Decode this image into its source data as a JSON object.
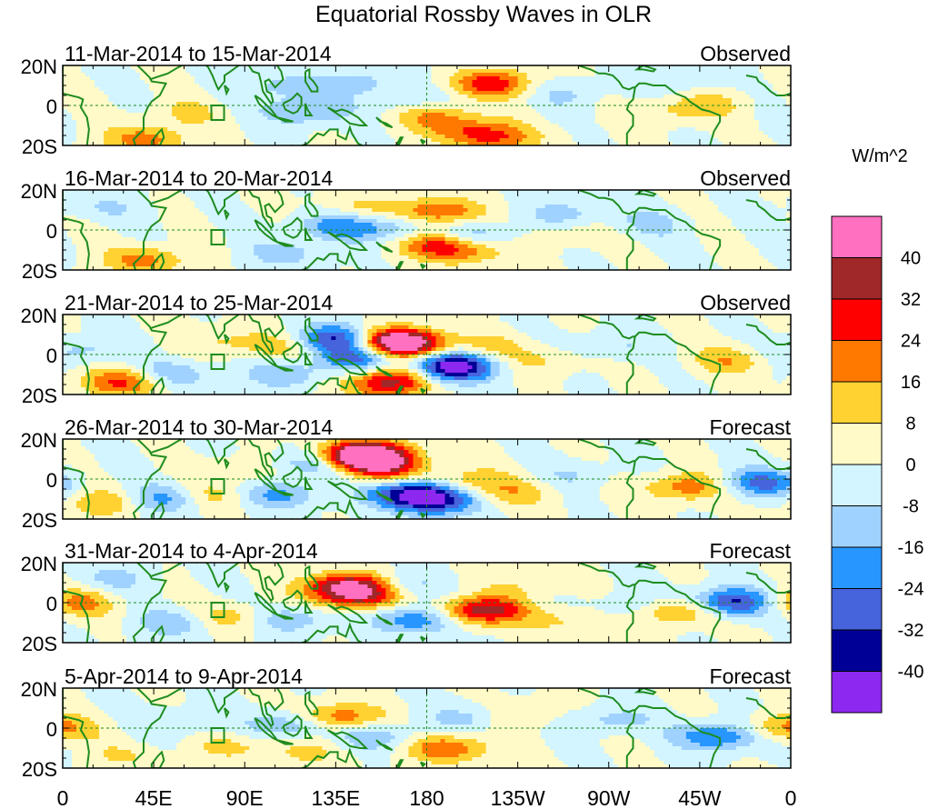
{
  "chart_data": {
    "type": "heatmap",
    "title": "Equatorial Rossby Waves in OLR",
    "colorbar": {
      "units": "W/m^2",
      "tick_labels": [
        "40",
        "32",
        "24",
        "16",
        "8",
        "0",
        "-8",
        "-16",
        "-24",
        "-32",
        "-40"
      ],
      "levels": [
        48,
        40,
        32,
        24,
        16,
        8,
        0,
        -8,
        -16,
        -24,
        -32,
        -40,
        -48
      ],
      "colors": [
        "#ff70c0",
        "#a02828",
        "#ff0000",
        "#ff7800",
        "#ffd232",
        "#fffac8",
        "#d2f5ff",
        "#a0d2ff",
        "#2896ff",
        "#4664dc",
        "#000096",
        "#8c28f0"
      ]
    },
    "x_tick_labels": [
      "0",
      "45E",
      "90E",
      "135E",
      "180",
      "135W",
      "90W",
      "45W",
      "0"
    ],
    "x_range_deg_east": [
      0,
      360
    ],
    "y_tick_labels": [
      "20N",
      "0",
      "20S"
    ],
    "y_range_deg": [
      -20,
      20
    ],
    "reference_lines": [
      "Equator (0)",
      "180"
    ],
    "panels": [
      {
        "period": "11-Mar-2014 to 15-Mar-2014",
        "status": "Observed",
        "anomalies": [
          {
            "lon": 212,
            "lat": 11,
            "value": 28
          },
          {
            "lon": 185,
            "lat": -6,
            "value": 18
          },
          {
            "lon": 205,
            "lat": -14,
            "value": 22
          },
          {
            "lon": 220,
            "lat": -17,
            "value": 12
          },
          {
            "lon": 40,
            "lat": -17,
            "value": 20
          },
          {
            "lon": 60,
            "lat": -4,
            "value": 9
          },
          {
            "lon": 300,
            "lat": -3,
            "value": 10
          },
          {
            "lon": 322,
            "lat": 1,
            "value": 9
          },
          {
            "lon": 120,
            "lat": -3,
            "value": -18
          },
          {
            "lon": 110,
            "lat": 10,
            "value": -12
          },
          {
            "lon": 150,
            "lat": 12,
            "value": -10
          },
          {
            "lon": 170,
            "lat": 3,
            "value": -9
          },
          {
            "lon": 250,
            "lat": 6,
            "value": -9
          },
          {
            "lon": 305,
            "lat": 12,
            "value": -8
          }
        ]
      },
      {
        "period": "16-Mar-2014 to 20-Mar-2014",
        "status": "Observed",
        "anomalies": [
          {
            "lon": 185,
            "lat": 9,
            "value": 26
          },
          {
            "lon": 185,
            "lat": -7,
            "value": 24
          },
          {
            "lon": 200,
            "lat": -10,
            "value": 18
          },
          {
            "lon": 145,
            "lat": 11,
            "value": 10
          },
          {
            "lon": 40,
            "lat": -15,
            "value": 20
          },
          {
            "lon": 250,
            "lat": -2,
            "value": 8
          },
          {
            "lon": 135,
            "lat": 2,
            "value": -20
          },
          {
            "lon": 165,
            "lat": 1,
            "value": -16
          },
          {
            "lon": 205,
            "lat": -3,
            "value": -18
          },
          {
            "lon": 110,
            "lat": -12,
            "value": -12
          },
          {
            "lon": 250,
            "lat": 8,
            "value": -12
          },
          {
            "lon": 290,
            "lat": 3,
            "value": -10
          },
          {
            "lon": 20,
            "lat": 11,
            "value": -8
          }
        ]
      },
      {
        "period": "21-Mar-2014 to 25-Mar-2014",
        "status": "Observed",
        "anomalies": [
          {
            "lon": 162,
            "lat": 7,
            "value": 42
          },
          {
            "lon": 170,
            "lat": 4,
            "value": 30
          },
          {
            "lon": 172,
            "lat": -9,
            "value": 34
          },
          {
            "lon": 160,
            "lat": -15,
            "value": 28
          },
          {
            "lon": 30,
            "lat": -14,
            "value": 26
          },
          {
            "lon": 80,
            "lat": 7,
            "value": 9
          },
          {
            "lon": 210,
            "lat": 3,
            "value": 12
          },
          {
            "lon": 240,
            "lat": -3,
            "value": 10
          },
          {
            "lon": 330,
            "lat": -3,
            "value": 14
          },
          {
            "lon": 105,
            "lat": 4,
            "value": 12
          },
          {
            "lon": 138,
            "lat": 8,
            "value": -38
          },
          {
            "lon": 148,
            "lat": -2,
            "value": -30
          },
          {
            "lon": 185,
            "lat": -8,
            "value": -44
          },
          {
            "lon": 195,
            "lat": -4,
            "value": -26
          },
          {
            "lon": 55,
            "lat": -10,
            "value": -16
          },
          {
            "lon": 110,
            "lat": -10,
            "value": -14
          },
          {
            "lon": 270,
            "lat": 4,
            "value": -10
          },
          {
            "lon": 10,
            "lat": 2,
            "value": -12
          }
        ]
      },
      {
        "period": "26-Mar-2014 to 30-Mar-2014",
        "status": "Forecast",
        "anomalies": [
          {
            "lon": 150,
            "lat": 12,
            "value": 46
          },
          {
            "lon": 145,
            "lat": 10,
            "value": 30
          },
          {
            "lon": 160,
            "lat": 4,
            "value": 20
          },
          {
            "lon": 198,
            "lat": -2,
            "value": 18
          },
          {
            "lon": 225,
            "lat": -7,
            "value": 12
          },
          {
            "lon": 72,
            "lat": -9,
            "value": 12
          },
          {
            "lon": 90,
            "lat": 4,
            "value": 8
          },
          {
            "lon": 308,
            "lat": -4,
            "value": 22
          },
          {
            "lon": 20,
            "lat": -12,
            "value": 16
          },
          {
            "lon": 127,
            "lat": 8,
            "value": -26
          },
          {
            "lon": 175,
            "lat": -7,
            "value": -44
          },
          {
            "lon": 185,
            "lat": -12,
            "value": -24
          },
          {
            "lon": 108,
            "lat": -8,
            "value": -18
          },
          {
            "lon": 50,
            "lat": -10,
            "value": -20
          },
          {
            "lon": 345,
            "lat": -2,
            "value": -26
          },
          {
            "lon": 255,
            "lat": 2,
            "value": -8
          }
        ]
      },
      {
        "period": "31-Mar-2014 to 4-Apr-2014",
        "status": "Forecast",
        "anomalies": [
          {
            "lon": 143,
            "lat": 8,
            "value": 44
          },
          {
            "lon": 148,
            "lat": 3,
            "value": 26
          },
          {
            "lon": 200,
            "lat": -5,
            "value": 30
          },
          {
            "lon": 215,
            "lat": -3,
            "value": 16
          },
          {
            "lon": 5,
            "lat": 0,
            "value": 20
          },
          {
            "lon": 85,
            "lat": -7,
            "value": 14
          },
          {
            "lon": 305,
            "lat": -4,
            "value": 24
          },
          {
            "lon": 250,
            "lat": -9,
            "value": 10
          },
          {
            "lon": 230,
            "lat": 10,
            "value": 8
          },
          {
            "lon": 330,
            "lat": 0,
            "value": -38
          },
          {
            "lon": 178,
            "lat": -8,
            "value": -30
          },
          {
            "lon": 163,
            "lat": 8,
            "value": -20
          },
          {
            "lon": 112,
            "lat": -8,
            "value": -16
          },
          {
            "lon": 55,
            "lat": -10,
            "value": -14
          },
          {
            "lon": 25,
            "lat": 12,
            "value": -10
          },
          {
            "lon": 280,
            "lat": -2,
            "value": -10
          }
        ]
      },
      {
        "period": "5-Apr-2014 to 9-Apr-2014",
        "status": "Forecast",
        "anomalies": [
          {
            "lon": 135,
            "lat": 5,
            "value": 28
          },
          {
            "lon": 190,
            "lat": -10,
            "value": 24
          },
          {
            "lon": 355,
            "lat": 0,
            "value": 20
          },
          {
            "lon": 120,
            "lat": -12,
            "value": 10
          },
          {
            "lon": 230,
            "lat": 7,
            "value": 9
          },
          {
            "lon": 85,
            "lat": -9,
            "value": 10
          },
          {
            "lon": 30,
            "lat": -14,
            "value": 8
          },
          {
            "lon": 325,
            "lat": -4,
            "value": -28
          },
          {
            "lon": 115,
            "lat": 2,
            "value": -22
          },
          {
            "lon": 155,
            "lat": -4,
            "value": -16
          },
          {
            "lon": 270,
            "lat": 4,
            "value": -12
          },
          {
            "lon": 60,
            "lat": 3,
            "value": -10
          },
          {
            "lon": 200,
            "lat": 5,
            "value": -10
          }
        ]
      }
    ]
  }
}
